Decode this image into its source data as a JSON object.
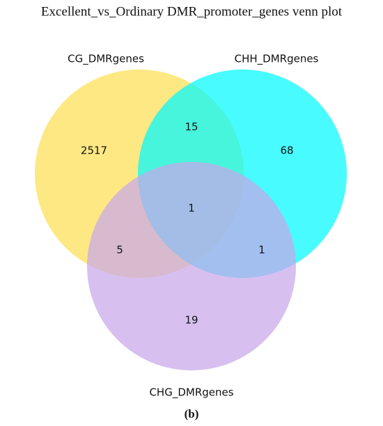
{
  "chart_data": {
    "type": "venn",
    "title": "Excellent_vs_Ordinary DMR_promoter_genes venn plot",
    "caption": "(b)",
    "sets": [
      {
        "name": "CG_DMRgenes",
        "color": "#fddf55"
      },
      {
        "name": "CHH_DMRgenes",
        "color": "#00fafe"
      },
      {
        "name": "CHG_DMRgenes",
        "color": "#c7a8ea"
      }
    ],
    "values": [
      2517,
      68,
      19,
      15,
      5,
      1,
      1
    ]
  }
}
